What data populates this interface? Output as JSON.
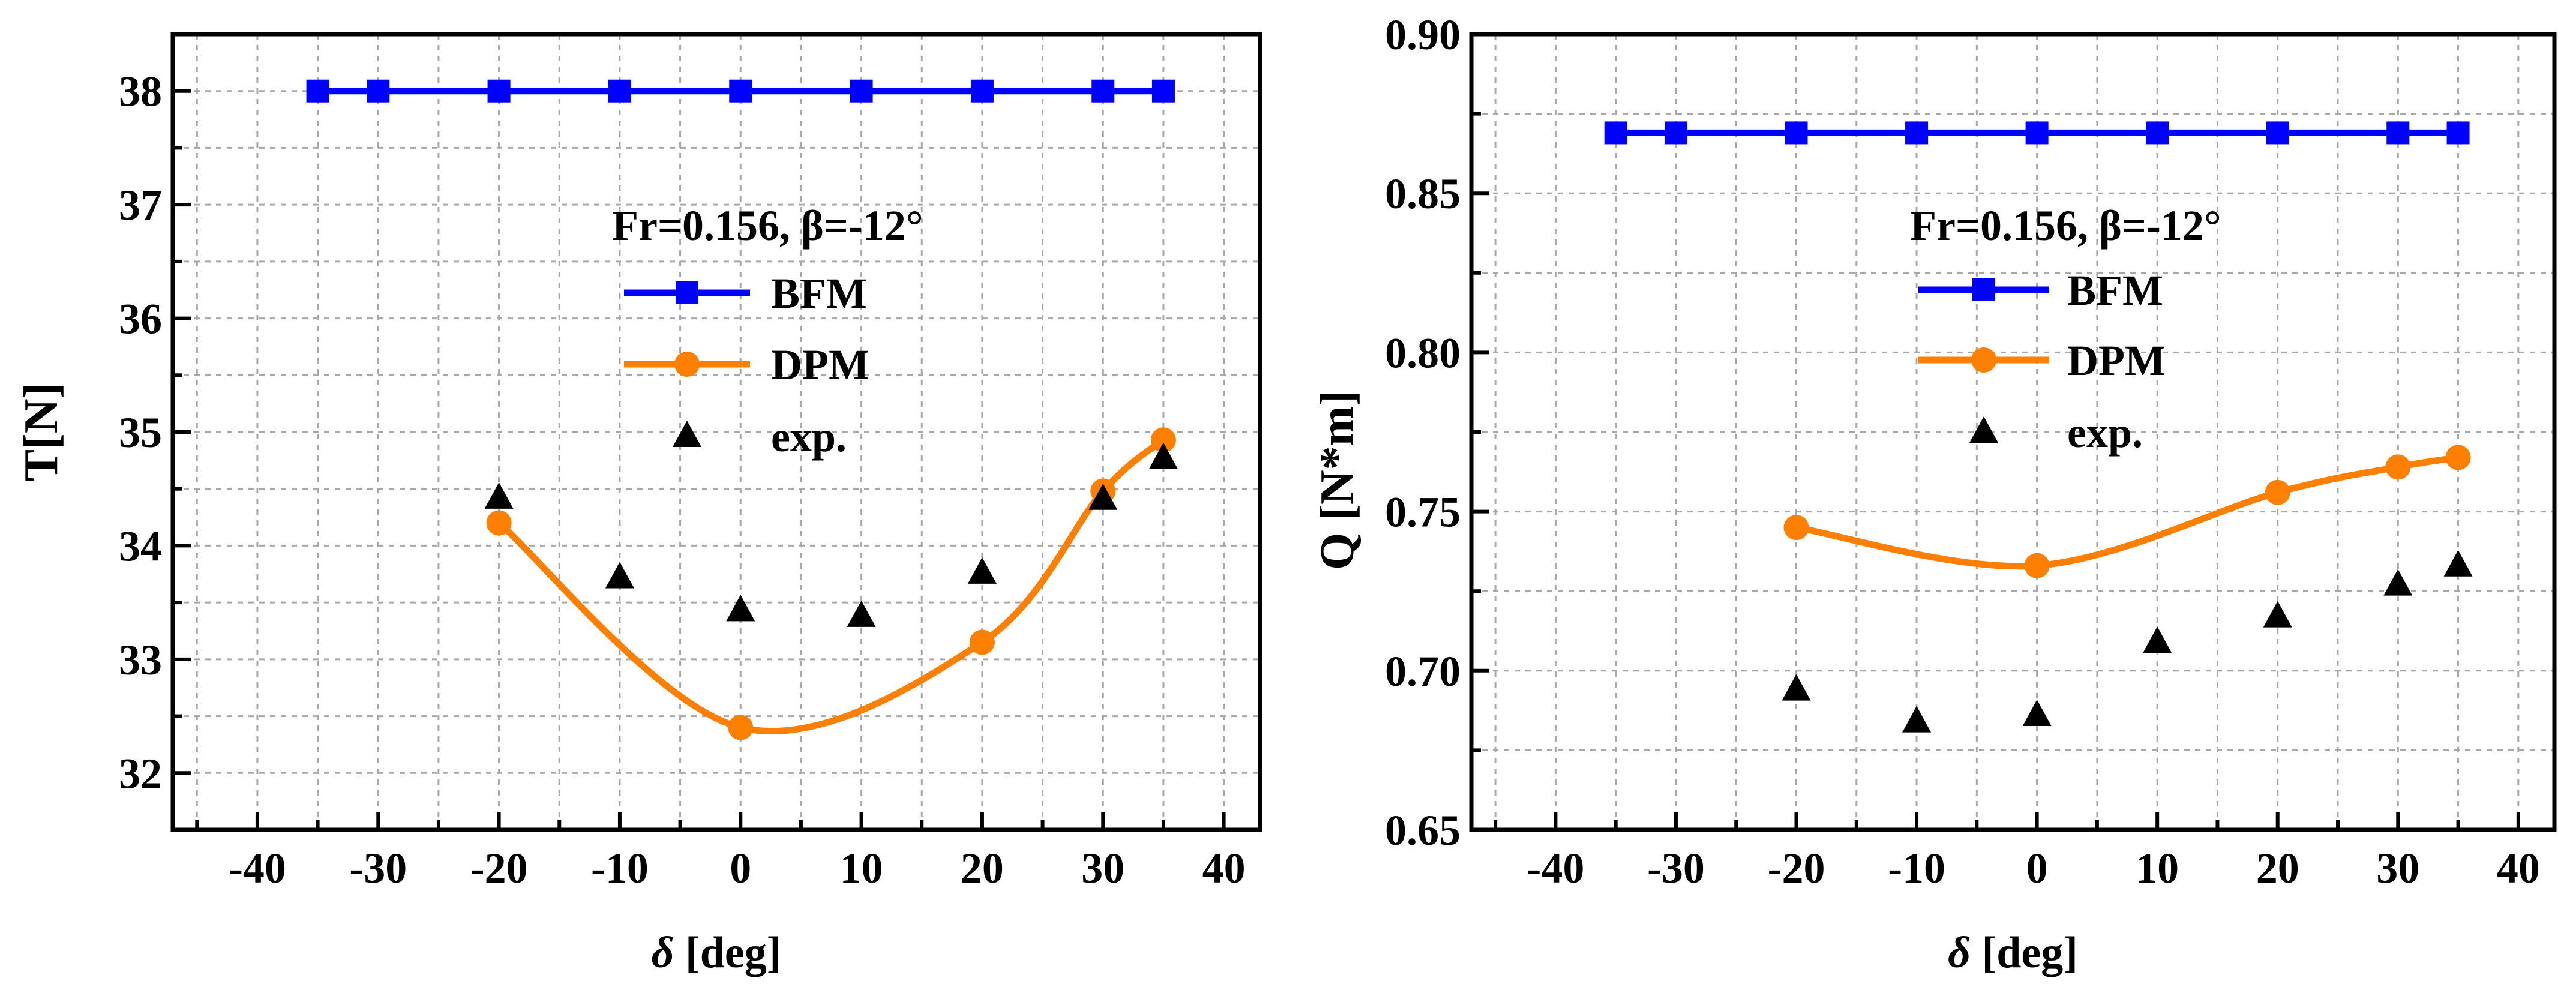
{
  "chart_data": [
    {
      "type": "line",
      "title": "",
      "xlabel_symbol": "δ",
      "xlabel_unit": "[deg]",
      "ylabel": "T[N]",
      "xlim": [
        -47,
        43
      ],
      "ylim": [
        31.5,
        38.5
      ],
      "xticks": [
        -40,
        -30,
        -20,
        -10,
        0,
        10,
        20,
        30,
        40
      ],
      "yticks": [
        32,
        33,
        34,
        35,
        36,
        37,
        38
      ],
      "ytick_labels": [
        "32",
        "33",
        "34",
        "35",
        "36",
        "37",
        "38"
      ],
      "grid": true,
      "annotation": "Fr=0.156, β=-12°",
      "legend_position": "center-right",
      "series": [
        {
          "name": "BFM",
          "marker": "square",
          "color": "#0000ff",
          "x": [
            -35,
            -30,
            -20,
            -10,
            0,
            10,
            20,
            30,
            35
          ],
          "y": [
            38.0,
            38.0,
            38.0,
            38.0,
            38.0,
            38.0,
            38.0,
            38.0,
            38.0
          ]
        },
        {
          "name": "DPM",
          "marker": "circle",
          "color": "#ff8000",
          "x": [
            -20,
            0,
            20,
            30,
            35
          ],
          "y": [
            34.2,
            32.4,
            33.15,
            34.48,
            34.93
          ]
        },
        {
          "name": "exp.",
          "marker": "triangle",
          "color": "#000000",
          "line": false,
          "x": [
            -20,
            -10,
            0,
            10,
            20,
            30,
            35
          ],
          "y": [
            34.42,
            33.72,
            33.43,
            33.38,
            33.76,
            34.41,
            34.77
          ]
        }
      ]
    },
    {
      "type": "line",
      "title": "",
      "xlabel_symbol": "δ",
      "xlabel_unit": "[deg]",
      "ylabel": "Q [N*m]",
      "xlim": [
        -47,
        43
      ],
      "ylim": [
        0.65,
        0.9
      ],
      "xticks": [
        -40,
        -30,
        -20,
        -10,
        0,
        10,
        20,
        30,
        40
      ],
      "yticks": [
        0.65,
        0.7,
        0.75,
        0.8,
        0.85,
        0.9
      ],
      "ytick_labels": [
        "0.65",
        "0.70",
        "0.75",
        "0.80",
        "0.85",
        "0.90"
      ],
      "grid": true,
      "annotation": "Fr=0.156, β=-12°",
      "legend_position": "center-right",
      "series": [
        {
          "name": "BFM",
          "marker": "square",
          "color": "#0000ff",
          "x": [
            -35,
            -30,
            -20,
            -10,
            0,
            10,
            20,
            30,
            35
          ],
          "y": [
            0.869,
            0.869,
            0.869,
            0.869,
            0.869,
            0.869,
            0.869,
            0.869,
            0.869
          ]
        },
        {
          "name": "DPM",
          "marker": "circle",
          "color": "#ff8000",
          "x": [
            -20,
            0,
            20,
            30,
            35
          ],
          "y": [
            0.745,
            0.733,
            0.756,
            0.764,
            0.767
          ]
        },
        {
          "name": "exp.",
          "marker": "triangle",
          "color": "#000000",
          "line": false,
          "x": [
            -20,
            -10,
            0,
            10,
            20,
            30,
            35
          ],
          "y": [
            0.694,
            0.684,
            0.686,
            0.709,
            0.717,
            0.727,
            0.733
          ]
        }
      ]
    }
  ]
}
